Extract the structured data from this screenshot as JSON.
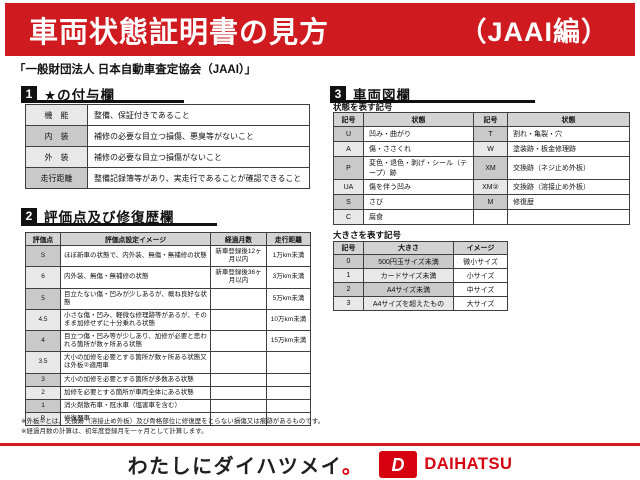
{
  "header": {
    "title": "車両状態証明書の見方",
    "edition": "（JAAI編）",
    "subtitle": "「一般財団法人 日本自動車査定協会（JAAI）」"
  },
  "section1": {
    "number": "1",
    "title": "★の付与欄",
    "rows": [
      [
        "機　能",
        "整備、保証付きであること"
      ],
      [
        "内　装",
        "補修の必要な目立つ損傷、悪臭等がないこと"
      ],
      [
        "外　装",
        "補修の必要な目立つ損傷がないこと"
      ],
      [
        "走行距離",
        "整備記録簿等があり、実走行であることが確認できること"
      ]
    ]
  },
  "section2": {
    "number": "2",
    "title": "評価点及び修復歴欄",
    "headers": [
      "評価点",
      "評価点設定イメージ",
      "経過月数",
      "走行距離"
    ],
    "rows": [
      [
        "S",
        "ほぼ新車の状態で、内外装、無傷・無補修の状態",
        "新車登録後12ヶ月以内",
        "1万km未満"
      ],
      [
        "6",
        "内外装、無傷・無補修の状態",
        "新車登録後36ヶ月以内",
        "3万km未満"
      ],
      [
        "5",
        "目立たない傷・凹みが少しあるが、概ね良好な状態",
        "",
        "5万km未満"
      ],
      [
        "4.5",
        "小さな傷・凹み、軽微な修理跡等があるが、そのまま加修せずに十分乗れる状態",
        "",
        "10万km未満"
      ],
      [
        "4",
        "目立つ傷・凹み等が少しあり、加修が必要と思われる箇所が数ヶ所ある状態",
        "",
        "15万km未満"
      ],
      [
        "3.5",
        "大小の加修を必要とする箇所が数ヶ所ある状態又は外板②適用車",
        "",
        ""
      ],
      [
        "3",
        "大小の加修を必要とする箇所が多数ある状態",
        "",
        ""
      ],
      [
        "2",
        "加修を必要とする箇所が車両全体にある状態",
        "",
        ""
      ],
      [
        "1",
        "消火剤散布車・冠水車（塩害車を含む）",
        "",
        ""
      ],
      [
        "R",
        "修復歴車",
        "",
        ""
      ]
    ]
  },
  "section3": {
    "number": "3",
    "title": "車両図欄",
    "state_table": {
      "label": "状態を表す記号",
      "headers": [
        "記号",
        "状態",
        "記号",
        "状態"
      ],
      "rows": [
        [
          "U",
          "凹み・曲がり",
          "T",
          "割れ・亀裂・穴"
        ],
        [
          "A",
          "傷・ささくれ",
          "W",
          "塗装跡・板金修理跡"
        ],
        [
          "P",
          "変色・退色・剥げ・シール（テープ）跡",
          "XM",
          "交換跡（ネジ止め外板）"
        ],
        [
          "UA",
          "傷を伴う凹み",
          "XM②",
          "交換跡（溶接止め外板）"
        ],
        [
          "S",
          "さび",
          "M",
          "修復歴"
        ],
        [
          "C",
          "腐食",
          "",
          ""
        ]
      ]
    },
    "size_table": {
      "label": "大きさを表す記号",
      "headers": [
        "記号",
        "大きさ",
        "イメージ"
      ],
      "rows": [
        [
          "0",
          "500円玉サイズ未満",
          "微小サイズ"
        ],
        [
          "1",
          "カードサイズ未満",
          "小サイズ"
        ],
        [
          "2",
          "A4サイズ未満",
          "中サイズ"
        ],
        [
          "3",
          "A4サイズを超えたもの",
          "大サイズ"
        ]
      ]
    }
  },
  "notes": {
    "line1": "※外板②とは、交換跡（溶接止め外板）及び骨格部位に修復歴をとらない損傷又は痕跡があるものです。",
    "line2": "※経過月数の計算は、初年度登録月を一ヶ月として計算します。"
  },
  "footer": {
    "tagline": {
      "text": "わたしにダイハツメイ。",
      "colors": [
        "#1f1f1f",
        "#1f1f1f",
        "#1f1f1f",
        "#1f1f1f",
        "#1f1f1f",
        "#1f1f1f",
        "#1f1f1f",
        "#1f1f1f",
        "#1f1f1f",
        "#1f1f1f",
        "#d7000f"
      ]
    },
    "brand": "DAIHATSU"
  },
  "colors": {
    "banner_red": "#cf1b20",
    "brand_red": "#d7000f",
    "table_header_gray": "#d3d3d3",
    "stripe_dark": "#c9c9c9",
    "stripe_light": "#e8e8e8"
  }
}
